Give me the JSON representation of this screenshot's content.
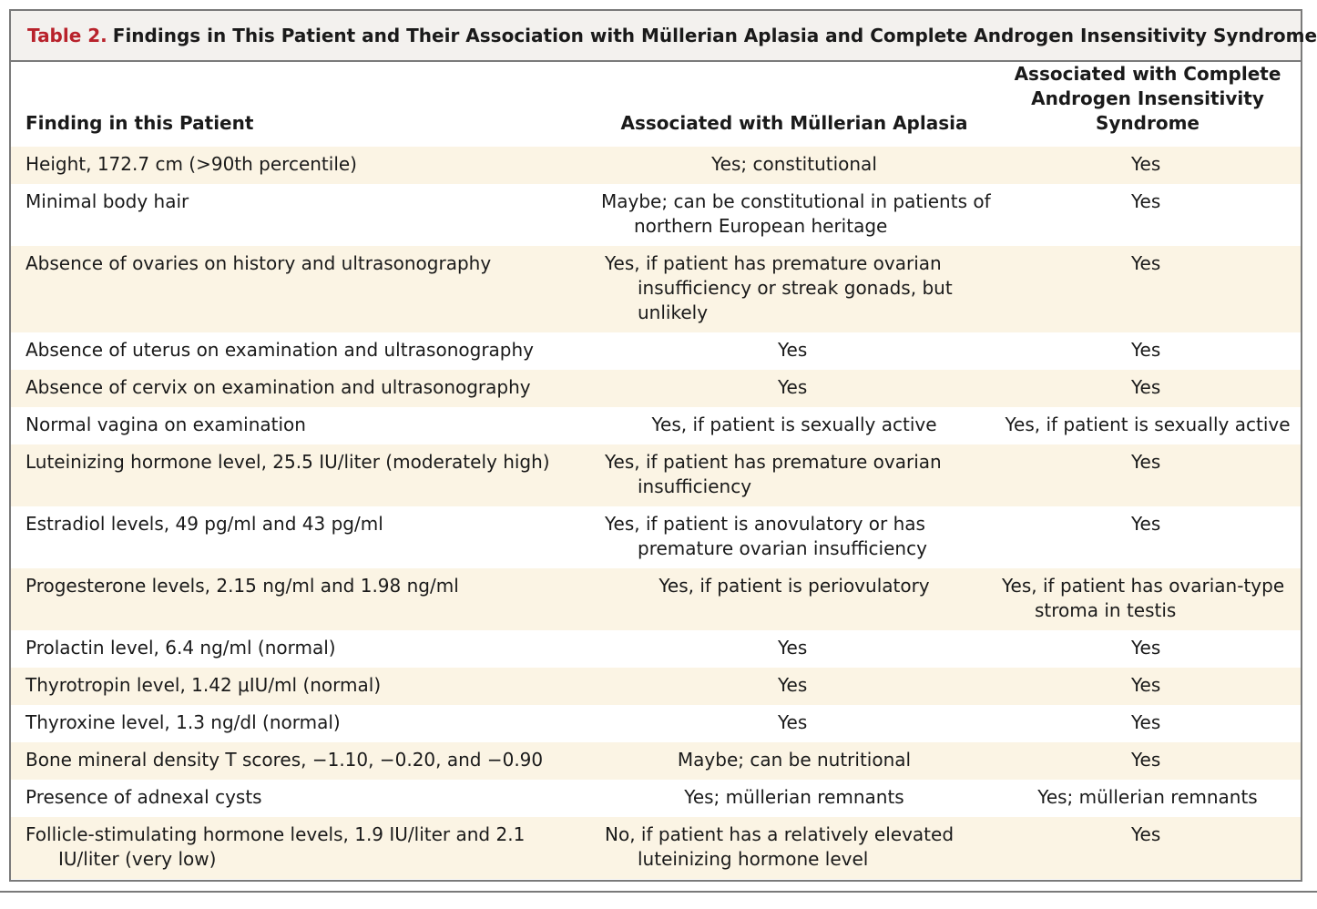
{
  "title": {
    "label": "Table 2.",
    "text": "Findings in This Patient and Their Association with Müllerian Aplasia and Complete Androgen Insensitivity Syndrome."
  },
  "headers": {
    "finding": "Finding in this Patient",
    "mullerian": "Associated with Müllerian Aplasia",
    "cais_line1": "Associated with Complete",
    "cais_line2": "Androgen Insensitivity Syndrome"
  },
  "rows": [
    {
      "finding": "Height, 172.7 cm (>90th percentile)",
      "mullerian": "Yes; constitutional",
      "cais": "Yes"
    },
    {
      "finding": "Minimal body hair",
      "mullerian": "Maybe; can be constitutional in patients of northern European heritage",
      "cais": "Yes"
    },
    {
      "finding": "Absence of ovaries on history and ultrasonography",
      "mullerian": "Yes, if patient has premature ovarian insufficiency or streak gonads, but unlikely",
      "cais": "Yes"
    },
    {
      "finding": "Absence of uterus on examination and ultrasonography",
      "mullerian": "Yes",
      "cais": "Yes"
    },
    {
      "finding": "Absence of cervix on examination and ultrasonography",
      "mullerian": "Yes",
      "cais": "Yes"
    },
    {
      "finding": "Normal vagina on examination",
      "mullerian": "Yes, if patient is sexually active",
      "cais": "Yes, if patient is sexually active"
    },
    {
      "finding": "Luteinizing hormone level, 25.5 IU/liter (moderately high)",
      "mullerian": "Yes, if patient has premature ovarian insufficiency",
      "cais": "Yes"
    },
    {
      "finding": "Estradiol levels, 49 pg/ml and 43 pg/ml",
      "mullerian": "Yes, if patient is anovulatory or has premature ovarian insufficiency",
      "cais": "Yes"
    },
    {
      "finding": "Progesterone levels, 2.15 ng/ml and 1.98 ng/ml",
      "mullerian": "Yes, if patient is periovulatory",
      "cais": "Yes, if patient has ovarian-type stroma in testis"
    },
    {
      "finding": "Prolactin level, 6.4 ng/ml (normal)",
      "mullerian": "Yes",
      "cais": "Yes"
    },
    {
      "finding": "Thyrotropin level, 1.42 μIU/ml (normal)",
      "mullerian": "Yes",
      "cais": "Yes"
    },
    {
      "finding": "Thyroxine level, 1.3 ng/dl (normal)",
      "mullerian": "Yes",
      "cais": "Yes"
    },
    {
      "finding": "Bone mineral density T scores, −1.10, −0.20, and −0.90",
      "mullerian": "Maybe; can be nutritional",
      "cais": "Yes"
    },
    {
      "finding": "Presence of adnexal cysts",
      "mullerian": "Yes; müllerian remnants",
      "cais": "Yes; müllerian remnants"
    },
    {
      "finding": "Follicle-stimulating hormone levels, 1.9 IU/liter and 2.1 IU/liter (very low)",
      "mullerian": "No, if patient has a relatively elevated luteinizing hormone level",
      "cais": "Yes"
    }
  ]
}
